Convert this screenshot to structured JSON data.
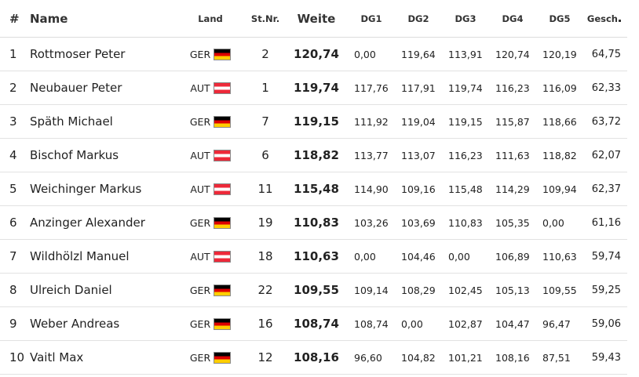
{
  "headers": {
    "rank": "#",
    "name": "Name",
    "land": "Land",
    "stnr": "St.Nr.",
    "weite": "Weite",
    "dg1": "DG1",
    "dg2": "DG2",
    "dg3": "DG3",
    "dg4": "DG4",
    "dg5": "DG5",
    "gesch": "Gesch"
  },
  "rows": [
    {
      "rank": "1",
      "name": "Rottmoser Peter",
      "land": "GER",
      "flag": "flag-germany-icon",
      "stnr": "2",
      "weite": "120,74",
      "dg1": "0,00",
      "dg2": "119,64",
      "dg3": "113,91",
      "dg4": "120,74",
      "dg5": "120,19",
      "gesch": "64,75"
    },
    {
      "rank": "2",
      "name": "Neubauer Peter",
      "land": "AUT",
      "flag": "flag-austria-icon",
      "stnr": "1",
      "weite": "119,74",
      "dg1": "117,76",
      "dg2": "117,91",
      "dg3": "119,74",
      "dg4": "116,23",
      "dg5": "116,09",
      "gesch": "62,33"
    },
    {
      "rank": "3",
      "name": "Späth Michael",
      "land": "GER",
      "flag": "flag-germany-icon",
      "stnr": "7",
      "weite": "119,15",
      "dg1": "111,92",
      "dg2": "119,04",
      "dg3": "119,15",
      "dg4": "115,87",
      "dg5": "118,66",
      "gesch": "63,72"
    },
    {
      "rank": "4",
      "name": "Bischof Markus",
      "land": "AUT",
      "flag": "flag-austria-icon",
      "stnr": "6",
      "weite": "118,82",
      "dg1": "113,77",
      "dg2": "113,07",
      "dg3": "116,23",
      "dg4": "111,63",
      "dg5": "118,82",
      "gesch": "62,07"
    },
    {
      "rank": "5",
      "name": "Weichinger Markus",
      "land": "AUT",
      "flag": "flag-austria-icon",
      "stnr": "11",
      "weite": "115,48",
      "dg1": "114,90",
      "dg2": "109,16",
      "dg3": "115,48",
      "dg4": "114,29",
      "dg5": "109,94",
      "gesch": "62,37"
    },
    {
      "rank": "6",
      "name": "Anzinger Alexander",
      "land": "GER",
      "flag": "flag-germany-icon",
      "stnr": "19",
      "weite": "110,83",
      "dg1": "103,26",
      "dg2": "103,69",
      "dg3": "110,83",
      "dg4": "105,35",
      "dg5": "0,00",
      "gesch": "61,16"
    },
    {
      "rank": "7",
      "name": "Wildhölzl Manuel",
      "land": "AUT",
      "flag": "flag-austria-icon",
      "stnr": "18",
      "weite": "110,63",
      "dg1": "0,00",
      "dg2": "104,46",
      "dg3": "0,00",
      "dg4": "106,89",
      "dg5": "110,63",
      "gesch": "59,74"
    },
    {
      "rank": "8",
      "name": "Ulreich Daniel",
      "land": "GER",
      "flag": "flag-germany-icon",
      "stnr": "22",
      "weite": "109,55",
      "dg1": "109,14",
      "dg2": "108,29",
      "dg3": "102,45",
      "dg4": "105,13",
      "dg5": "109,55",
      "gesch": "59,25"
    },
    {
      "rank": "9",
      "name": "Weber Andreas",
      "land": "GER",
      "flag": "flag-germany-icon",
      "stnr": "16",
      "weite": "108,74",
      "dg1": "108,74",
      "dg2": "0,00",
      "dg3": "102,87",
      "dg4": "104,47",
      "dg5": "96,47",
      "gesch": "59,06"
    },
    {
      "rank": "10",
      "name": "Vaitl Max",
      "land": "GER",
      "flag": "flag-germany-icon",
      "stnr": "12",
      "weite": "108,16",
      "dg1": "96,60",
      "dg2": "104,82",
      "dg3": "101,21",
      "dg4": "108,16",
      "dg5": "87,51",
      "gesch": "59,43"
    }
  ]
}
